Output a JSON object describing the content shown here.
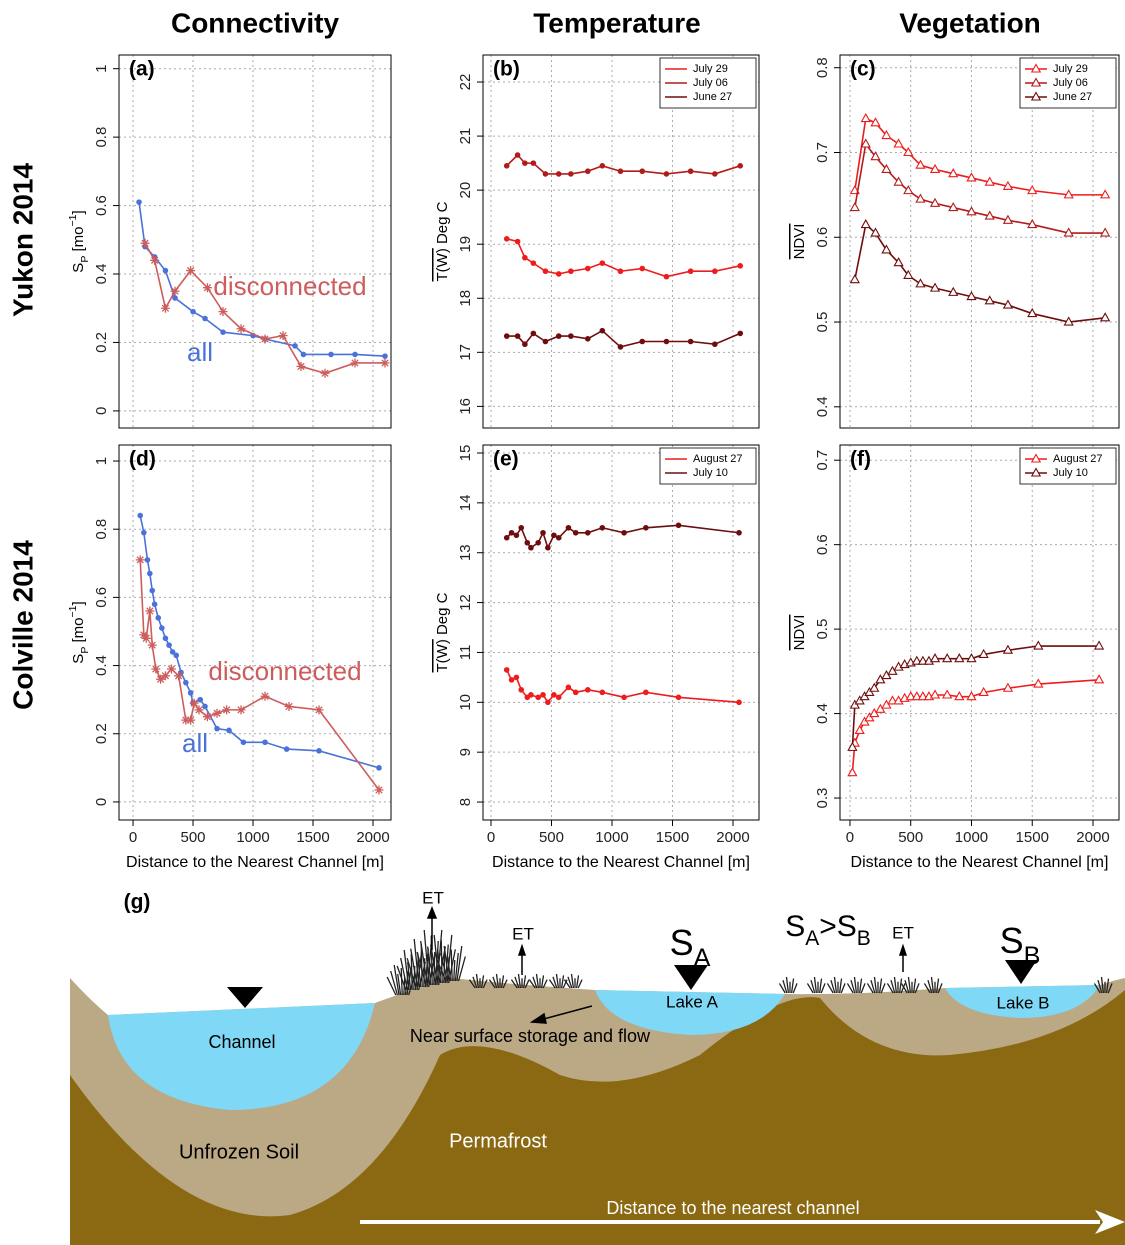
{
  "column_titles": [
    "Connectivity",
    "Temperature",
    "Vegetation"
  ],
  "row_titles": [
    "Yukon 2014",
    "Colville 2014"
  ],
  "chart_data": [
    {
      "type": "line",
      "panel": "(a)",
      "ylabel": [
        {
          "text": "S"
        },
        {
          "text": "P",
          "shift": "sub"
        },
        {
          "text": " [mo"
        },
        {
          "text": "−1",
          "shift": "super"
        },
        {
          "text": "]"
        }
      ],
      "xlim": [
        -117,
        2150
      ],
      "xticks": [
        0,
        500,
        1000,
        1500,
        2000
      ],
      "xtick_labels": false,
      "ylim": [
        -0.05,
        1.04
      ],
      "yticks": [
        0,
        0.2,
        0.4,
        0.6,
        0.8,
        1
      ],
      "grid": true,
      "legend": "none",
      "series": [
        {
          "name": "all",
          "color": "#4a72d9",
          "marker": "dot",
          "x": [
            50,
            100,
            180,
            270,
            350,
            500,
            600,
            750,
            1000,
            1100,
            1350,
            1420,
            1650,
            1850,
            2100
          ],
          "values": [
            0.61,
            0.48,
            0.45,
            0.41,
            0.33,
            0.29,
            0.27,
            0.23,
            0.22,
            0.21,
            0.19,
            0.165,
            0.165,
            0.165,
            0.16
          ]
        },
        {
          "name": "disconnected",
          "color": "#cd5c5c",
          "marker": "star",
          "x": [
            100,
            180,
            270,
            350,
            480,
            620,
            750,
            900,
            1100,
            1250,
            1400,
            1600,
            1850,
            2100
          ],
          "values": [
            0.49,
            0.44,
            0.3,
            0.35,
            0.41,
            0.36,
            0.29,
            0.24,
            0.21,
            0.22,
            0.13,
            0.11,
            0.14,
            0.14
          ]
        }
      ]
    },
    {
      "type": "line",
      "panel": "(b)",
      "ylabel": [
        {
          "text": "T(W)",
          "overline": true
        },
        {
          "text": " Deg C"
        }
      ],
      "xlim": [
        -66,
        2215
      ],
      "xticks": [
        0,
        500,
        1000,
        1500,
        2000
      ],
      "xtick_labels": false,
      "ylim": [
        15.6,
        22.5
      ],
      "yticks": [
        16,
        17,
        18,
        19,
        20,
        21,
        22
      ],
      "grid": true,
      "legend": "top-right",
      "x": [
        130,
        220,
        280,
        350,
        450,
        560,
        660,
        800,
        920,
        1070,
        1250,
        1450,
        1650,
        1850,
        2060
      ],
      "series": [
        {
          "name": "July 29",
          "color": "#ee1c1c",
          "marker": "dot",
          "values": [
            19.1,
            19.05,
            18.75,
            18.65,
            18.5,
            18.45,
            18.5,
            18.55,
            18.65,
            18.5,
            18.55,
            18.4,
            18.5,
            18.5,
            18.6
          ]
        },
        {
          "name": "July 06",
          "color": "#b31b1b",
          "marker": "dot",
          "values": [
            20.45,
            20.65,
            20.5,
            20.5,
            20.3,
            20.3,
            20.3,
            20.35,
            20.45,
            20.35,
            20.35,
            20.3,
            20.35,
            20.3,
            20.45
          ]
        },
        {
          "name": "June 27",
          "color": "#6e0d0d",
          "marker": "dot",
          "values": [
            17.3,
            17.3,
            17.15,
            17.35,
            17.2,
            17.3,
            17.3,
            17.25,
            17.4,
            17.1,
            17.2,
            17.2,
            17.2,
            17.15,
            17.35
          ]
        }
      ]
    },
    {
      "type": "line",
      "panel": "(c)",
      "ylabel": [
        {
          "text": "NDVI",
          "overline": true
        }
      ],
      "xlim": [
        -82,
        2214
      ],
      "xticks": [
        0,
        500,
        1000,
        1500,
        2000
      ],
      "xtick_labels": false,
      "ylim": [
        0.375,
        0.815
      ],
      "yticks": [
        0.4,
        0.5,
        0.6,
        0.7,
        0.8
      ],
      "grid": true,
      "legend": "top-right",
      "x": [
        40,
        130,
        210,
        300,
        400,
        480,
        580,
        700,
        850,
        1000,
        1150,
        1300,
        1500,
        1800,
        2100
      ],
      "series": [
        {
          "name": "July 29",
          "color": "#ee1c1c",
          "marker": "tri",
          "values": [
            0.655,
            0.74,
            0.735,
            0.72,
            0.71,
            0.7,
            0.685,
            0.68,
            0.675,
            0.67,
            0.665,
            0.66,
            0.655,
            0.65,
            0.65
          ]
        },
        {
          "name": "July 06",
          "color": "#b31b1b",
          "marker": "tri",
          "values": [
            0.635,
            0.71,
            0.695,
            0.68,
            0.665,
            0.655,
            0.645,
            0.64,
            0.635,
            0.63,
            0.625,
            0.62,
            0.615,
            0.605,
            0.605
          ]
        },
        {
          "name": "June 27",
          "color": "#6e0d0d",
          "marker": "tri",
          "values": [
            0.55,
            0.615,
            0.605,
            0.585,
            0.57,
            0.555,
            0.545,
            0.54,
            0.535,
            0.53,
            0.525,
            0.52,
            0.51,
            0.5,
            0.505
          ]
        }
      ]
    },
    {
      "type": "line",
      "panel": "(d)",
      "ylabel": [
        {
          "text": "S"
        },
        {
          "text": "P",
          "shift": "sub"
        },
        {
          "text": " [mo"
        },
        {
          "text": "−1",
          "shift": "super"
        },
        {
          "text": "]"
        }
      ],
      "xlabel": "Distance to the Nearest Channel [m]",
      "xlim": [
        -117,
        2150
      ],
      "xticks": [
        0,
        500,
        1000,
        1500,
        2000
      ],
      "ylim": [
        -0.053,
        1.047
      ],
      "yticks": [
        0,
        0.2,
        0.4,
        0.6,
        0.8,
        1
      ],
      "grid": true,
      "legend": "none",
      "series": [
        {
          "name": "all",
          "color": "#4a72d9",
          "marker": "dot",
          "x": [
            60,
            90,
            120,
            140,
            160,
            180,
            210,
            240,
            270,
            300,
            330,
            360,
            400,
            440,
            480,
            500,
            560,
            600,
            700,
            800,
            920,
            1100,
            1280,
            1550,
            2050
          ],
          "values": [
            0.84,
            0.79,
            0.71,
            0.67,
            0.62,
            0.58,
            0.54,
            0.51,
            0.48,
            0.46,
            0.44,
            0.43,
            0.38,
            0.35,
            0.32,
            0.29,
            0.3,
            0.28,
            0.215,
            0.21,
            0.175,
            0.175,
            0.155,
            0.15,
            0.1
          ]
        },
        {
          "name": "disconnected",
          "color": "#cd5c5c",
          "marker": "star",
          "x": [
            60,
            90,
            110,
            140,
            160,
            190,
            230,
            270,
            320,
            380,
            440,
            480,
            510,
            550,
            620,
            700,
            780,
            900,
            1100,
            1300,
            1550,
            2050
          ],
          "values": [
            0.71,
            0.49,
            0.48,
            0.56,
            0.46,
            0.39,
            0.36,
            0.37,
            0.39,
            0.37,
            0.24,
            0.24,
            0.29,
            0.27,
            0.25,
            0.26,
            0.27,
            0.27,
            0.31,
            0.28,
            0.27,
            0.035
          ]
        }
      ]
    },
    {
      "type": "line",
      "panel": "(e)",
      "ylabel": [
        {
          "text": "T(W)",
          "overline": true
        },
        {
          "text": " Deg C"
        }
      ],
      "xlabel": "Distance to the Nearest Channel [m]",
      "xlim": [
        -66,
        2215
      ],
      "xticks": [
        0,
        500,
        1000,
        1500,
        2000
      ],
      "ylim": [
        7.64,
        15.16
      ],
      "yticks": [
        8,
        9,
        10,
        11,
        12,
        13,
        14,
        15
      ],
      "grid": true,
      "legend": "top-right",
      "x": [
        130,
        170,
        210,
        250,
        300,
        330,
        390,
        430,
        470,
        520,
        560,
        640,
        700,
        800,
        920,
        1100,
        1280,
        1550,
        2050
      ],
      "series": [
        {
          "name": "August 27",
          "color": "#ee1c1c",
          "marker": "dot",
          "values": [
            10.65,
            10.45,
            10.5,
            10.25,
            10.1,
            10.15,
            10.1,
            10.15,
            10.0,
            10.15,
            10.1,
            10.3,
            10.2,
            10.25,
            10.2,
            10.1,
            10.2,
            10.1,
            10.0
          ]
        },
        {
          "name": "July 10",
          "color": "#6e0d0d",
          "marker": "dot",
          "values": [
            13.3,
            13.4,
            13.35,
            13.5,
            13.2,
            13.1,
            13.2,
            13.4,
            13.1,
            13.35,
            13.3,
            13.5,
            13.4,
            13.4,
            13.5,
            13.4,
            13.5,
            13.55,
            13.4
          ]
        }
      ]
    },
    {
      "type": "line",
      "panel": "(f)",
      "ylabel": [
        {
          "text": "NDVI",
          "overline": true
        }
      ],
      "xlabel": "Distance to the Nearest Channel [m]",
      "xlim": [
        -82,
        2214
      ],
      "xticks": [
        0,
        500,
        1000,
        1500,
        2000
      ],
      "ylim": [
        0.274,
        0.718
      ],
      "yticks": [
        0.3,
        0.4,
        0.5,
        0.6,
        0.7
      ],
      "grid": true,
      "legend": "top-right",
      "x": [
        20,
        40,
        80,
        120,
        160,
        200,
        250,
        300,
        350,
        400,
        450,
        500,
        550,
        600,
        650,
        700,
        800,
        900,
        1000,
        1100,
        1300,
        1550,
        2050
      ],
      "series": [
        {
          "name": "August 27",
          "color": "#ee1c1c",
          "marker": "tri",
          "values": [
            0.33,
            0.365,
            0.38,
            0.39,
            0.395,
            0.4,
            0.405,
            0.41,
            0.415,
            0.415,
            0.418,
            0.42,
            0.42,
            0.42,
            0.42,
            0.422,
            0.422,
            0.42,
            0.42,
            0.425,
            0.43,
            0.435,
            0.44
          ]
        },
        {
          "name": "July 10",
          "color": "#6e0d0d",
          "marker": "tri",
          "values": [
            0.36,
            0.41,
            0.415,
            0.42,
            0.425,
            0.43,
            0.44,
            0.445,
            0.45,
            0.455,
            0.458,
            0.46,
            0.462,
            0.462,
            0.462,
            0.465,
            0.465,
            0.465,
            0.465,
            0.47,
            0.475,
            0.48,
            0.48
          ]
        }
      ]
    }
  ],
  "diagram": {
    "panel": "(g)",
    "et": [
      "ET",
      "ET",
      "ET"
    ],
    "s_a": [
      {
        "text": "S"
      },
      {
        "text": "A",
        "shift": "sub"
      }
    ],
    "compare": [
      {
        "text": "S"
      },
      {
        "text": "A",
        "shift": "sub"
      },
      {
        "text": ">"
      },
      {
        "text": "S"
      },
      {
        "text": "B",
        "shift": "sub"
      }
    ],
    "s_b": [
      {
        "text": "S"
      },
      {
        "text": "B",
        "shift": "sub"
      }
    ],
    "lake_a": "Lake A",
    "lake_b": "Lake B",
    "channel": "Channel",
    "flow": "Near surface storage and flow",
    "soil": "Unfrozen Soil",
    "permafrost": "Permafrost",
    "distance": "Distance to the nearest channel"
  }
}
